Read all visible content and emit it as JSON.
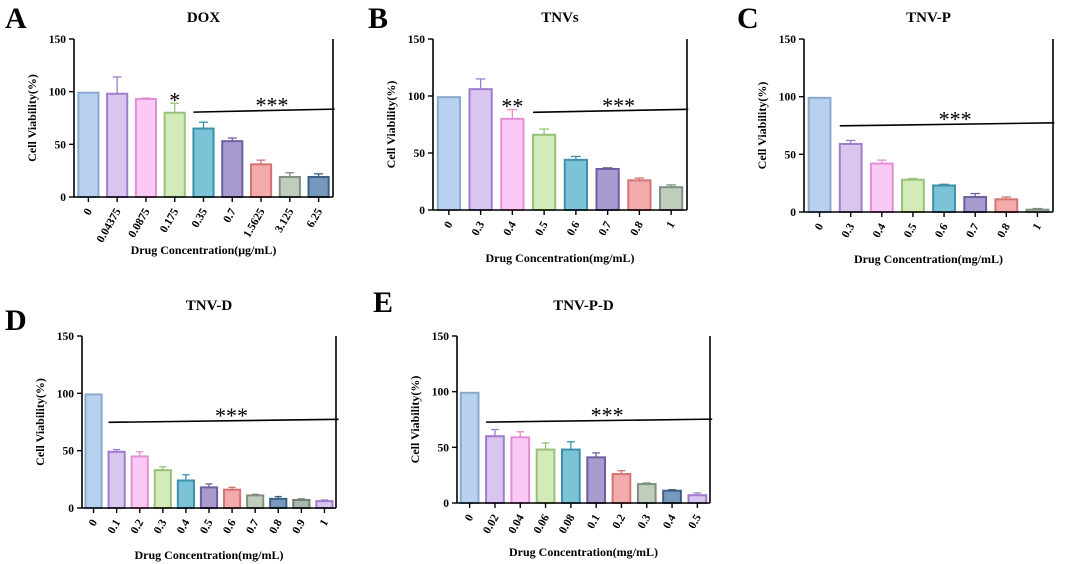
{
  "figure": {
    "bar_colors": [
      "#b8d1ee",
      "#d9c6ee",
      "#fbc9f6",
      "#d3eab9",
      "#7dc3d7",
      "#a79bcf",
      "#f3aaaa",
      "#c0cdbd",
      "#7798bd",
      "#a9b8aa"
    ],
    "edge_colors": [
      "#8aa9cf",
      "#a07ccc",
      "#e28fd5",
      "#96c37a",
      "#3c91ad",
      "#6f5fa0",
      "#d37373",
      "#7e9181",
      "#3e5f86",
      "#6e7f70"
    ]
  },
  "chart_data": [
    {
      "type": "bar",
      "panel": "A",
      "title": "DOX",
      "xlabel": "Drug Concentration(μg/mL)",
      "ylabel": "Cell Viability(%)",
      "ylim": [
        0,
        150
      ],
      "yticks": [
        "0",
        "50",
        "100",
        "150"
      ],
      "categories": [
        "0",
        "0.04375",
        "0.0875",
        "0.175",
        "0.35",
        "0.7",
        "1.5625",
        "3.125",
        "6.25"
      ],
      "values": [
        99,
        98,
        93,
        80,
        65,
        53,
        31,
        19,
        19
      ],
      "errors": [
        0,
        16,
        1,
        9,
        6,
        3,
        4,
        4,
        3
      ],
      "color_index": [
        0,
        1,
        2,
        3,
        4,
        5,
        6,
        7,
        8
      ],
      "annotations": [
        {
          "text": "*",
          "at": 3
        },
        {
          "text": "***",
          "line_from": 4,
          "line_to": 8,
          "line_value": 82
        }
      ]
    },
    {
      "type": "bar",
      "panel": "B",
      "title": "TNVs",
      "xlabel": "Drug Concentration(mg/mL)",
      "ylabel": "Cell Viability(%)",
      "ylim": [
        0,
        150
      ],
      "yticks": [
        "0",
        "50",
        "100",
        "150"
      ],
      "categories": [
        "0",
        "0.3",
        "0.4",
        "0.5",
        "0.6",
        "0.7",
        "0.8",
        "1"
      ],
      "values": [
        99,
        106,
        80,
        66,
        44,
        36,
        26,
        20
      ],
      "errors": [
        0,
        9,
        8,
        5,
        3,
        1,
        2,
        2
      ],
      "color_index": [
        0,
        1,
        2,
        3,
        4,
        5,
        6,
        7
      ],
      "annotations": [
        {
          "text": "**",
          "at": 2
        },
        {
          "text": "***",
          "line_from": 3,
          "line_to": 7,
          "line_value": 87
        }
      ]
    },
    {
      "type": "bar",
      "panel": "C",
      "title": "TNV-P",
      "xlabel": "Drug Concentration(mg/mL)",
      "ylabel": "Cell Viability(%)",
      "ylim": [
        0,
        150
      ],
      "yticks": [
        "0",
        "50",
        "100",
        "150"
      ],
      "categories": [
        "0",
        "0.3",
        "0.4",
        "0.5",
        "0.6",
        "0.7",
        "0.8",
        "1"
      ],
      "values": [
        99,
        59,
        42,
        28,
        23,
        13,
        11,
        2
      ],
      "errors": [
        0,
        3,
        3,
        1,
        1,
        3,
        2,
        1
      ],
      "color_index": [
        0,
        1,
        2,
        3,
        4,
        5,
        6,
        7
      ],
      "annotations": [
        {
          "text": "***",
          "line_from": 1,
          "line_to": 7,
          "line_value": 76
        }
      ]
    },
    {
      "type": "bar",
      "panel": "D",
      "title": "TNV-D",
      "xlabel": "Drug Concentration(mg/mL)",
      "ylabel": "Cell Viability(%)",
      "ylim": [
        0,
        150
      ],
      "yticks": [
        "0",
        "50",
        "100",
        "150"
      ],
      "categories": [
        "0",
        "0.1",
        "0.2",
        "0.3",
        "0.4",
        "0.5",
        "0.6",
        "0.7",
        "0.8",
        "0.9",
        "1"
      ],
      "values": [
        99,
        49,
        45,
        33,
        24,
        18,
        16,
        11,
        8,
        7,
        6
      ],
      "errors": [
        0,
        2,
        4,
        3,
        5,
        3,
        2,
        1,
        2,
        1,
        1
      ],
      "color_index": [
        0,
        1,
        2,
        3,
        4,
        5,
        6,
        7,
        8,
        9,
        1
      ],
      "annotations": [
        {
          "text": "***",
          "line_from": 1,
          "line_to": 10,
          "line_value": 76
        }
      ]
    },
    {
      "type": "bar",
      "panel": "E",
      "title": "TNV-P-D",
      "xlabel": "Drug Concentration(mg/mL)",
      "ylabel": "Cell Viability(%)",
      "ylim": [
        0,
        150
      ],
      "yticks": [
        "0",
        "50",
        "100",
        "150"
      ],
      "categories": [
        "0",
        "0.02",
        "0.04",
        "0.06",
        "0.08",
        "0.1",
        "0.2",
        "0.3",
        "0.4",
        "0.5"
      ],
      "values": [
        99,
        60,
        59,
        48,
        48,
        41,
        26,
        17,
        11,
        7
      ],
      "errors": [
        0,
        6,
        5,
        6,
        7,
        4,
        3,
        1,
        1,
        2
      ],
      "color_index": [
        0,
        1,
        2,
        3,
        4,
        5,
        6,
        7,
        8,
        1
      ],
      "annotations": [
        {
          "text": "***",
          "line_from": 1,
          "line_to": 9,
          "line_value": 74
        }
      ]
    }
  ]
}
